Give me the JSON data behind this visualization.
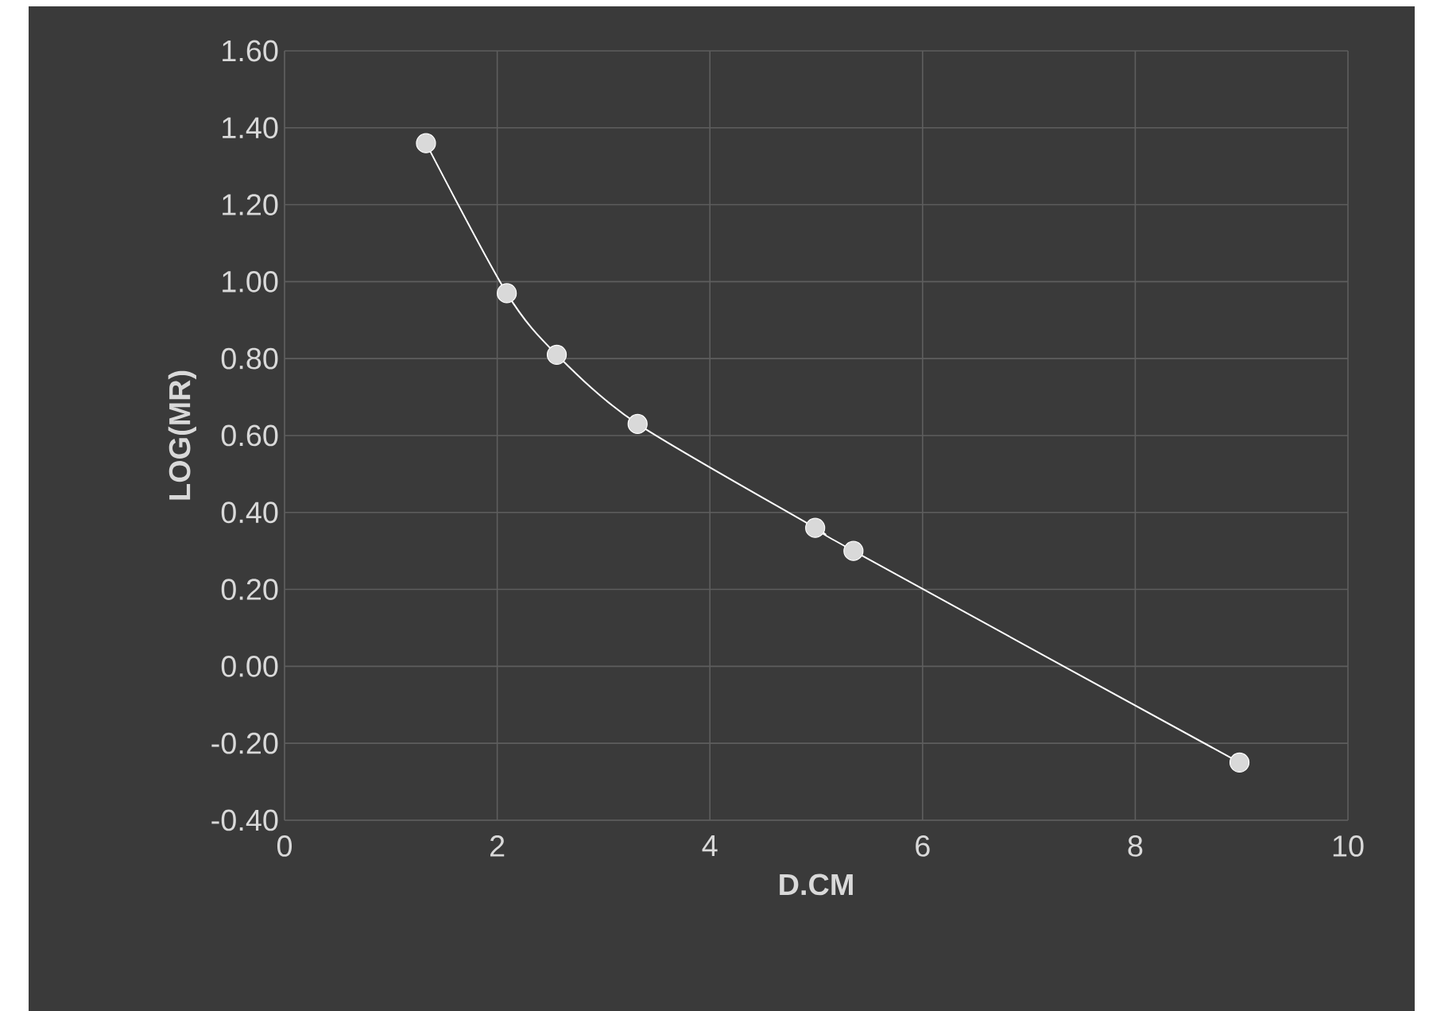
{
  "chart_data": {
    "type": "line",
    "xlabel": "D.CM",
    "ylabel": "LOG(MR)",
    "x": [
      1.33,
      2.09,
      2.56,
      3.32,
      4.99,
      5.35,
      8.98
    ],
    "series": [
      {
        "color": "#ffffff",
        "values": [
          1.36,
          0.97,
          0.81,
          0.63,
          0.36,
          0.3,
          -0.25
        ]
      }
    ],
    "xlim": [
      0,
      10
    ],
    "xticks": [
      0,
      2,
      4,
      6,
      8,
      10
    ],
    "ylim": [
      -0.4,
      1.6
    ],
    "yticks": [
      {
        "value": -0.4,
        "label": "-0.40"
      },
      {
        "value": -0.2,
        "label": "-0.20"
      },
      {
        "value": 0,
        "label": "0.00"
      },
      {
        "value": 0.2,
        "label": "0.20"
      },
      {
        "value": 0.4,
        "label": "0.40"
      },
      {
        "value": 0.6,
        "label": "0.60"
      },
      {
        "value": 0.8,
        "label": "0.80"
      },
      {
        "value": 1.0,
        "label": "1.00"
      },
      {
        "value": 1.2,
        "label": "1.20"
      },
      {
        "value": 1.4,
        "label": "1.40"
      },
      {
        "value": 1.6,
        "label": "1.60"
      }
    ],
    "grid": true,
    "marker": "circle",
    "line_style": "solid"
  }
}
